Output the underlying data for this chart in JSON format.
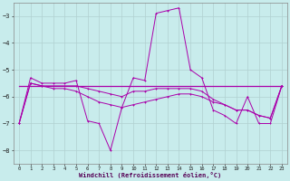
{
  "xlabel": "Windchill (Refroidissement éolien,°C)",
  "background_color": "#c8ecec",
  "grid_color": "#b0d0d0",
  "line_color": "#aa00aa",
  "xlim": [
    -0.5,
    23.5
  ],
  "ylim": [
    -8.5,
    -2.5
  ],
  "yticks": [
    -8,
    -7,
    -6,
    -5,
    -4,
    -3
  ],
  "xticks": [
    0,
    1,
    2,
    3,
    4,
    5,
    6,
    7,
    8,
    9,
    10,
    11,
    12,
    13,
    14,
    15,
    16,
    17,
    18,
    19,
    20,
    21,
    22,
    23
  ],
  "lines": [
    {
      "x": [
        0,
        1,
        2,
        3,
        4,
        5,
        6,
        7,
        8,
        9,
        10,
        11,
        12,
        13,
        14,
        15,
        16,
        17,
        18,
        19,
        20,
        21,
        22,
        23
      ],
      "y": [
        -7.0,
        -5.3,
        -5.5,
        -5.5,
        -5.5,
        -5.4,
        -6.9,
        -7.0,
        -8.0,
        -6.4,
        -5.3,
        -5.4,
        -2.9,
        -2.8,
        -2.7,
        -5.0,
        -5.3,
        -6.5,
        -6.7,
        -7.0,
        -6.0,
        -7.0,
        -7.0,
        -5.6
      ]
    },
    {
      "x": [
        0,
        1,
        2,
        3,
        4,
        5,
        6,
        7,
        8,
        9,
        10,
        11,
        12,
        13,
        14,
        15,
        16,
        17,
        18,
        19,
        20,
        21,
        22,
        23
      ],
      "y": [
        -7.0,
        -5.5,
        -5.6,
        -5.6,
        -5.6,
        -5.6,
        -5.7,
        -5.8,
        -5.9,
        -6.0,
        -5.8,
        -5.8,
        -5.7,
        -5.7,
        -5.7,
        -5.7,
        -5.8,
        -6.1,
        -6.3,
        -6.5,
        -6.5,
        -6.7,
        -6.8,
        -5.6
      ]
    },
    {
      "x": [
        0,
        1,
        2,
        3,
        4,
        5,
        6,
        7,
        8,
        9,
        10,
        11,
        12,
        13,
        14,
        15,
        16,
        17,
        18,
        19,
        20,
        21,
        22,
        23
      ],
      "y": [
        -7.0,
        -5.5,
        -5.6,
        -5.7,
        -5.7,
        -5.8,
        -6.0,
        -6.2,
        -6.3,
        -6.4,
        -6.3,
        -6.2,
        -6.1,
        -6.0,
        -5.9,
        -5.9,
        -6.0,
        -6.2,
        -6.3,
        -6.5,
        -6.5,
        -6.7,
        -6.8,
        -5.6
      ]
    },
    {
      "x": [
        0,
        23
      ],
      "y": [
        -5.6,
        -5.6
      ]
    }
  ]
}
